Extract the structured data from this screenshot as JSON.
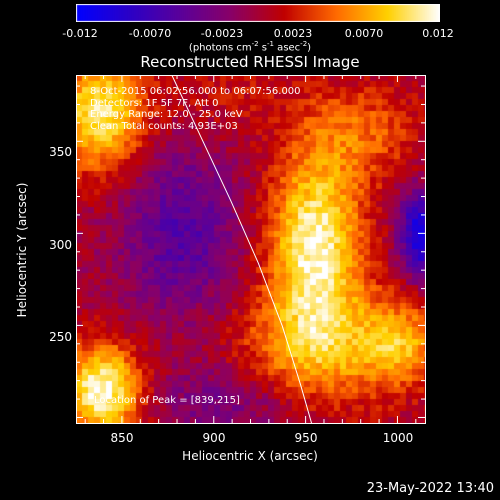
{
  "colorbar": {
    "ticks": [
      "-0.012",
      "-0.0070",
      "-0.0023",
      "0.0023",
      "0.0070",
      "0.012"
    ],
    "units_prefix": "(photons cm",
    "units_exp1": "-2",
    "units_mid1": " s",
    "units_exp2": "-1",
    "units_mid2": " asec",
    "units_exp3": "-2",
    "units_suffix": ")",
    "colors": [
      "#0000ff",
      "#2a00c8",
      "#5a009a",
      "#8a0066",
      "#c00000",
      "#ff6a00",
      "#ffd000",
      "#ffffff"
    ]
  },
  "chart_data": {
    "type": "heatmap",
    "title": "Reconstructed RHESSI Image",
    "xlabel": "Heliocentric X (arcsec)",
    "ylabel": "Heliocentric Y (arcsec)",
    "xlim": [
      825,
      1015
    ],
    "ylim": [
      197,
      386
    ],
    "xticks": [
      "850",
      "900",
      "950",
      "1000"
    ],
    "yticks": [
      "250",
      "300",
      "350"
    ],
    "value_range": [
      -0.012,
      0.012
    ],
    "annotations": [
      "8-Oct-2015 06:02:56.000 to 06:07:56.000",
      "Detectors: 1F 5F 7F, Att 0",
      "Energy Range: 12.0 - 25.0 keV",
      "Clean     Total counts: 4.93E+03"
    ],
    "peak_label": "Location of Peak = [839,215]",
    "sources": [
      {
        "x": 839,
        "y": 215,
        "sx": 16,
        "sy": 18,
        "amp": 0.012
      },
      {
        "x": 955,
        "y": 295,
        "sx": 18,
        "sy": 34,
        "amp": 0.0115
      },
      {
        "x": 838,
        "y": 365,
        "sx": 17,
        "sy": 22,
        "amp": 0.0105
      },
      {
        "x": 958,
        "y": 238,
        "sx": 32,
        "sy": 22,
        "amp": 0.007
      },
      {
        "x": 1002,
        "y": 240,
        "sx": 14,
        "sy": 16,
        "amp": 0.006
      },
      {
        "x": 980,
        "y": 355,
        "sx": 24,
        "sy": 18,
        "amp": 0.0045
      },
      {
        "x": 905,
        "y": 375,
        "sx": 28,
        "sy": 14,
        "amp": 0.002
      },
      {
        "x": 882,
        "y": 300,
        "sx": 22,
        "sy": 32,
        "amp": -0.0055
      },
      {
        "x": 1012,
        "y": 300,
        "sx": 8,
        "sy": 16,
        "amp": -0.011
      },
      {
        "x": 905,
        "y": 210,
        "sx": 30,
        "sy": 14,
        "amp": -0.0035
      }
    ],
    "limb_curve": [
      [
        877,
        386
      ],
      [
        893,
        352
      ],
      [
        909,
        318
      ],
      [
        924,
        284
      ],
      [
        937,
        250
      ],
      [
        947,
        218
      ],
      [
        953,
        197
      ]
    ]
  },
  "footer": {
    "date": "23-May-2022 13:40"
  }
}
